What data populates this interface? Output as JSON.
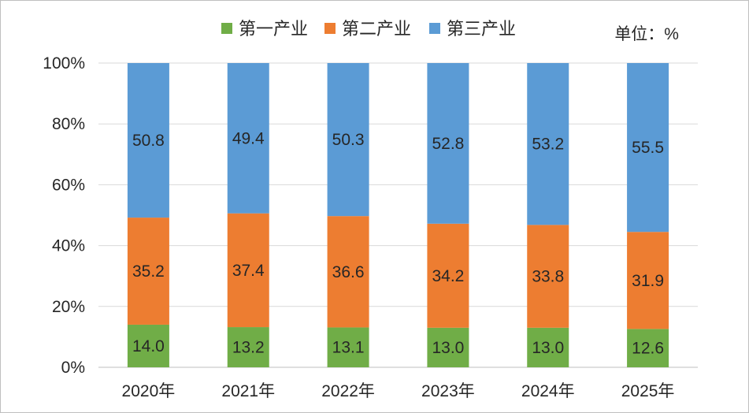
{
  "chart_data": {
    "type": "bar",
    "stacked": true,
    "percent": true,
    "unit_label": "单位：%",
    "categories": [
      "2020年",
      "2021年",
      "2022年",
      "2023年",
      "2024年",
      "2025年"
    ],
    "series": [
      {
        "name": "第一产业",
        "color": "#70ad47",
        "values": [
          14.0,
          13.2,
          13.1,
          13.0,
          13.0,
          12.6
        ]
      },
      {
        "name": "第二产业",
        "color": "#ed7d31",
        "values": [
          35.2,
          37.4,
          36.6,
          34.2,
          33.8,
          31.9
        ]
      },
      {
        "name": "第三产业",
        "color": "#5b9bd5",
        "values": [
          50.8,
          49.4,
          50.3,
          52.8,
          53.2,
          55.5
        ]
      }
    ],
    "y_ticks": [
      "0%",
      "20%",
      "40%",
      "60%",
      "80%",
      "100%"
    ],
    "ylim": [
      0,
      100
    ],
    "grid": true,
    "legend_position": "top"
  }
}
